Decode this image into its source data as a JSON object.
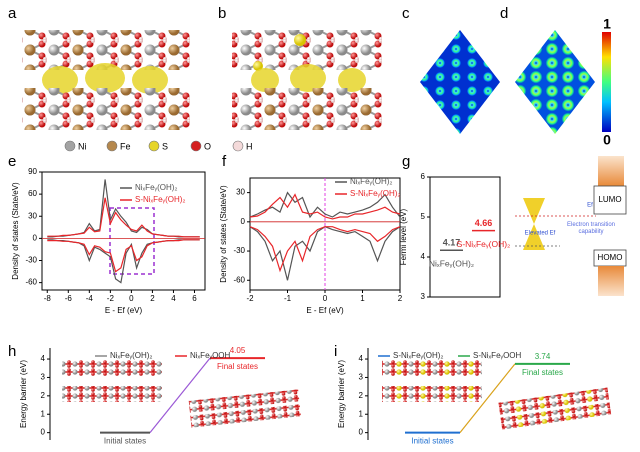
{
  "panel_labels": [
    "a",
    "b",
    "c",
    "d",
    "e",
    "f",
    "g",
    "h",
    "i"
  ],
  "atoms": [
    {
      "label": "Ni",
      "color": "#a3a3a3"
    },
    {
      "label": "Fe",
      "color": "#b5884d"
    },
    {
      "label": "S",
      "color": "#e6d52a"
    },
    {
      "label": "O",
      "color": "#d42020"
    },
    {
      "label": "H",
      "color": "#f4dada"
    }
  ],
  "colorbar": {
    "ticks": [
      0,
      1
    ]
  },
  "chart_data": [
    {
      "type": "line",
      "xlabel": "E - Ef (eV)",
      "ylabel": "Density of states (State/eV)",
      "xlim": [
        -8.5,
        7
      ],
      "xticks": [
        -8,
        -6,
        -4,
        -2,
        0,
        2,
        4,
        6
      ],
      "ylim": [
        -70,
        90
      ],
      "yticks": [
        -60,
        -30,
        0,
        30,
        60,
        90
      ],
      "x": [
        -8,
        -7.5,
        -7,
        -6.5,
        -6,
        -5.5,
        -5,
        -4.5,
        -4,
        -3.5,
        -3,
        -2.5,
        -2,
        -1.5,
        -1,
        -0.5,
        0,
        0.5,
        1,
        1.5,
        2,
        2.5,
        3,
        3.5,
        4,
        4.5,
        5,
        5.5,
        6,
        6.5
      ],
      "series": [
        {
          "name": "NiₓFeᵧ(OH)₂",
          "color": "#555555",
          "values": [
            2,
            2,
            3,
            3,
            4,
            5,
            6,
            8,
            20,
            10,
            12,
            80,
            25,
            40,
            30,
            22,
            10,
            8,
            15,
            12,
            6,
            5,
            4,
            3,
            3,
            2,
            2,
            2,
            2,
            2
          ]
        },
        {
          "name": "S-NiₓFeᵧ(OH)₂",
          "color": "#e8262a",
          "values": [
            3,
            3,
            3,
            4,
            4,
            5,
            6,
            7,
            15,
            9,
            10,
            55,
            20,
            35,
            25,
            18,
            12,
            10,
            18,
            10,
            6,
            5,
            4,
            3,
            3,
            3,
            2,
            2,
            2,
            2
          ]
        },
        {
          "color": "#555555",
          "values": [
            -2,
            -2,
            -3,
            -3,
            -4,
            -5,
            -6,
            -10,
            -30,
            -12,
            -15,
            -20,
            -25,
            -55,
            -60,
            -20,
            -8,
            -40,
            -20,
            -8,
            -6,
            -5,
            -4,
            -3,
            -3,
            -2,
            -2,
            -2,
            -2,
            -2
          ]
        },
        {
          "color": "#e8262a",
          "values": [
            -3,
            -3,
            -3,
            -4,
            -4,
            -5,
            -6,
            -8,
            -22,
            -10,
            -12,
            -18,
            -20,
            -45,
            -40,
            -15,
            -10,
            -30,
            -25,
            -10,
            -6,
            -5,
            -4,
            -3,
            -3,
            -3,
            -2,
            -2,
            -2,
            -2
          ]
        }
      ]
    },
    {
      "type": "line",
      "xlabel": "E - Ef (eV)",
      "ylabel": "Density of states (State/eV)",
      "xlim": [
        -2,
        2
      ],
      "xticks": [
        -2,
        -1,
        0,
        1,
        2
      ],
      "ylim": [
        -70,
        45
      ],
      "yticks": [
        -60,
        -30,
        0,
        30
      ],
      "x": [
        -2,
        -1.8,
        -1.6,
        -1.4,
        -1.2,
        -1,
        -0.8,
        -0.6,
        -0.4,
        -0.2,
        0,
        0.2,
        0.4,
        0.6,
        0.8,
        1,
        1.2,
        1.4,
        1.6,
        1.8,
        2
      ],
      "series": [
        {
          "name": "NiₓFeᵧ(OH)₂",
          "color": "#555555",
          "values": [
            5,
            8,
            12,
            15,
            10,
            30,
            20,
            25,
            5,
            15,
            8,
            5,
            10,
            8,
            10,
            12,
            15,
            20,
            28,
            15,
            5
          ]
        },
        {
          "name": "S-NiₓFeᵧ(OH)₂",
          "color": "#e8262a",
          "values": [
            5,
            6,
            10,
            18,
            25,
            15,
            28,
            10,
            8,
            10,
            5,
            3,
            5,
            5,
            8,
            8,
            10,
            12,
            15,
            10,
            8
          ]
        },
        {
          "color": "#555555",
          "values": [
            -5,
            -10,
            -20,
            -40,
            -30,
            -60,
            -25,
            -20,
            -30,
            -10,
            -5,
            -8,
            -10,
            -12,
            -10,
            -15,
            -20,
            -40,
            -20,
            -10,
            -5
          ]
        },
        {
          "color": "#e8262a",
          "values": [
            -5,
            -8,
            -15,
            -25,
            -50,
            -30,
            -20,
            -40,
            -15,
            -8,
            -5,
            -5,
            -8,
            -10,
            -8,
            -10,
            -12,
            -20,
            -15,
            -8,
            -5
          ]
        }
      ]
    },
    {
      "type": "level",
      "ylabel": "Fermi level (eV)",
      "ylim": [
        3,
        6
      ],
      "yticks": [
        3,
        4,
        5,
        6
      ],
      "categories": [
        "NiₓFeᵧ(OH)₂",
        "S-NiₓFeᵧ(OH)₂"
      ],
      "values": [
        4.17,
        4.66
      ],
      "colors": [
        "#555555",
        "#e8262a"
      ],
      "annotations": [
        "LUMO",
        "HOMO",
        "Elevated Ef",
        "Ef",
        "Electron transition capability"
      ]
    },
    {
      "type": "energy_barrier",
      "ylabel": "Energy barrier (eV)",
      "ylim": [
        -0.4,
        4.6
      ],
      "yticks": [
        0,
        1,
        2,
        3,
        4
      ],
      "categories": [
        "Initial states",
        "Final states"
      ],
      "values": [
        0,
        4.05
      ],
      "colors": [
        "#555555",
        "#e8262a"
      ],
      "connector": "#9b59d6",
      "legend": [
        {
          "name": "NiₓFeᵧ(OH)₂",
          "color": "#888888"
        },
        {
          "name": "NiₓFeᵧOOH",
          "color": "#e8262a"
        }
      ]
    },
    {
      "type": "energy_barrier",
      "ylabel": "Energy barrier (eV)",
      "ylim": [
        -0.4,
        4.6
      ],
      "yticks": [
        0,
        1,
        2,
        3,
        4
      ],
      "categories": [
        "Initial states",
        "Final states"
      ],
      "values": [
        0,
        3.74
      ],
      "colors": [
        "#1f6fd0",
        "#2aa84a"
      ],
      "connector": "#d9a21b",
      "legend": [
        {
          "name": "S-NiₓFeᵧ(OH)₂",
          "color": "#1f6fd0"
        },
        {
          "name": "S-NiₓFeᵧOOH",
          "color": "#2aa84a"
        }
      ]
    }
  ]
}
